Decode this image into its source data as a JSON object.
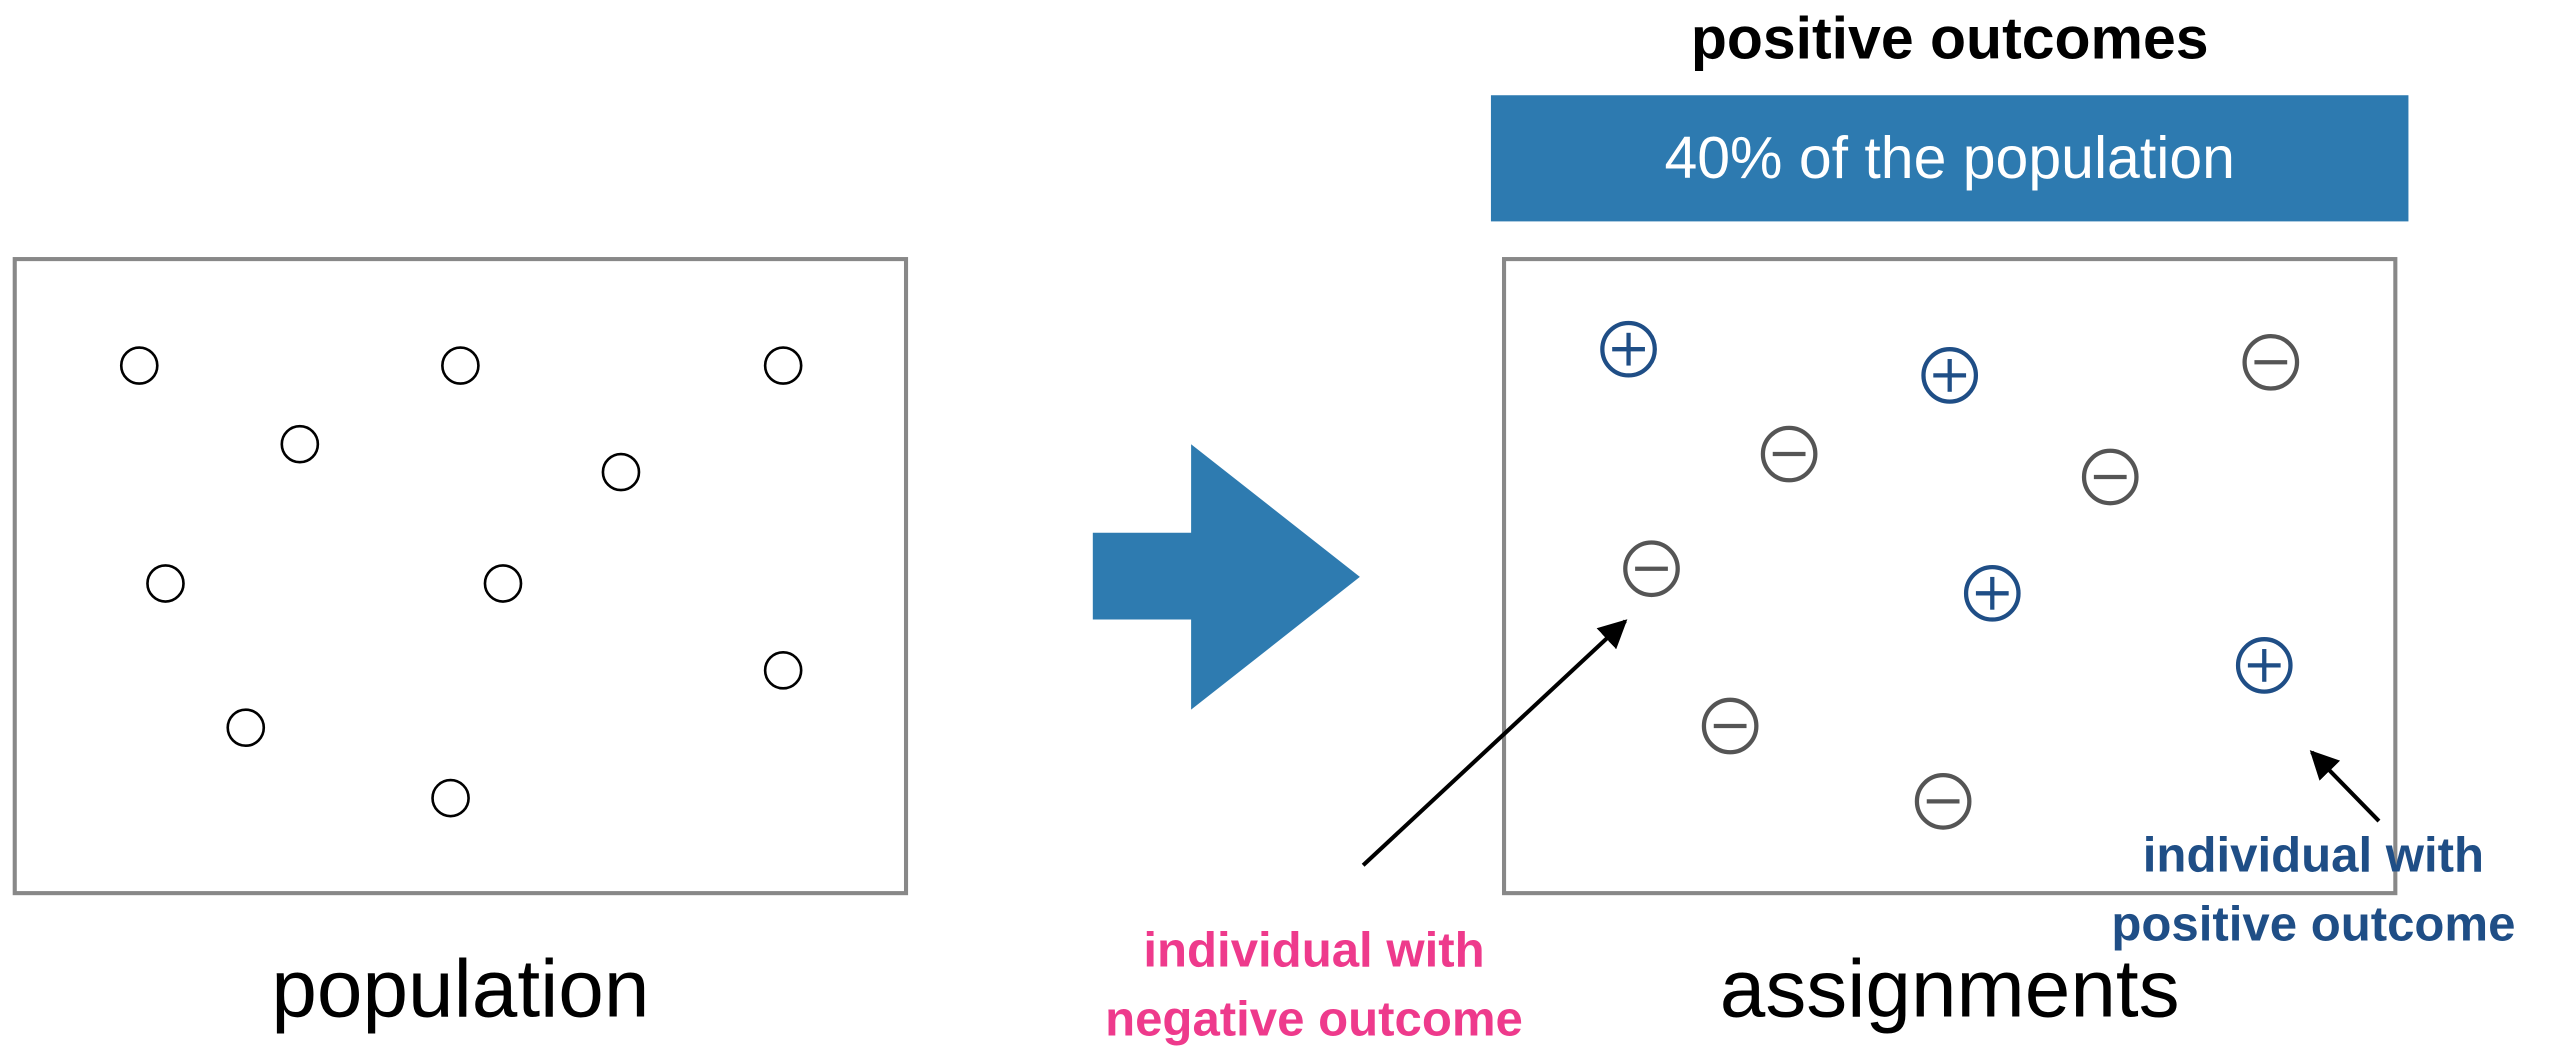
{
  "header": {
    "title": "positive outcomes",
    "banner": "40% of the population"
  },
  "left_panel": {
    "label": "population"
  },
  "right_panel": {
    "label": "assignments"
  },
  "annotations": [
    {
      "lines": [
        "individual with",
        "negative outcome"
      ]
    },
    {
      "lines": [
        "individual with",
        "positive outcome"
      ]
    }
  ]
}
